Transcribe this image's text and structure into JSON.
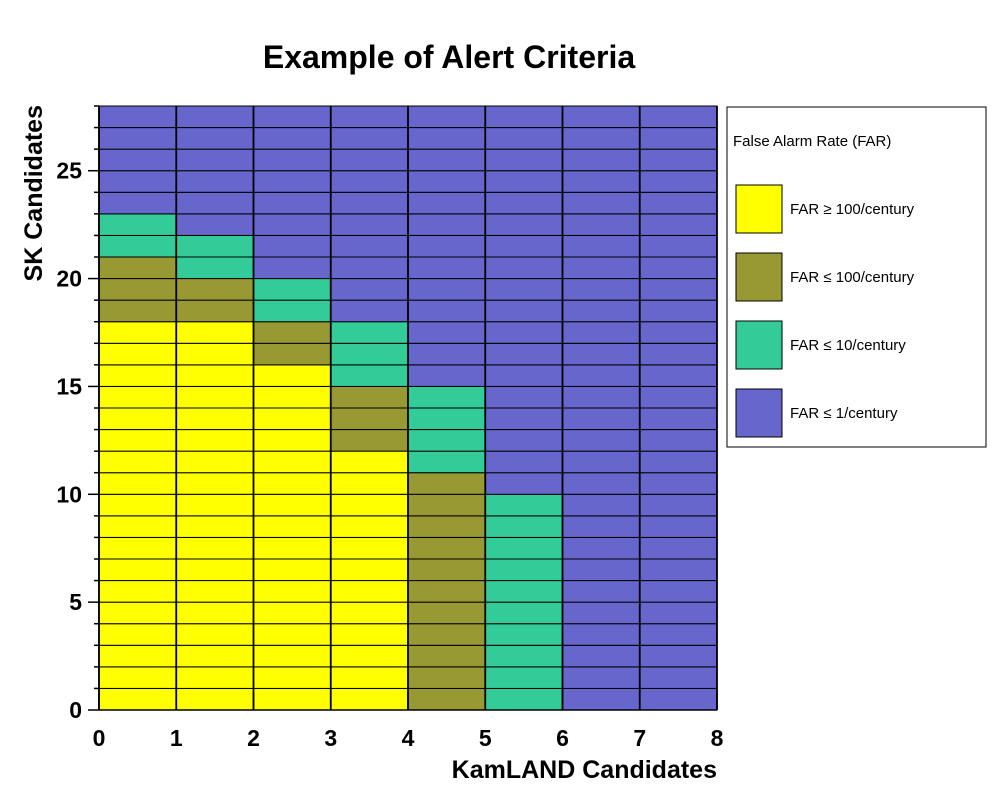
{
  "chart_data": {
    "type": "heatmap",
    "title": "Example of Alert Criteria",
    "xlabel": "KamLAND Candidates",
    "ylabel": "SK Candidates",
    "xlim": [
      0,
      8
    ],
    "ylim": [
      0,
      28
    ],
    "x_ticks": [
      "0",
      "1",
      "2",
      "3",
      "4",
      "5",
      "6",
      "7",
      "8"
    ],
    "y_ticks": [
      "0",
      "5",
      "10",
      "15",
      "20",
      "25"
    ],
    "x_tick_values": [
      0,
      1,
      2,
      3,
      4,
      5,
      6,
      7,
      8
    ],
    "y_tick_values": [
      0,
      5,
      10,
      15,
      20,
      25
    ],
    "cell_width": 1,
    "cell_height": 1,
    "legend": {
      "title": "False Alarm Rate (FAR)",
      "position": "right",
      "entries": [
        {
          "key": "L100plus",
          "label": "FAR ≥ 100/century",
          "color": "#ffff00"
        },
        {
          "key": "L100",
          "label": "FAR ≤ 100/century",
          "color": "#999933"
        },
        {
          "key": "L10",
          "label": "FAR ≤ 10/century",
          "color": "#33cc99"
        },
        {
          "key": "L1",
          "label": "FAR ≤ 1/century",
          "color": "#6666cc"
        }
      ]
    },
    "columns": [
      {
        "kamland": 0,
        "regions": [
          {
            "level": "L100plus",
            "sk_from": 0,
            "sk_to": 18
          },
          {
            "level": "L100",
            "sk_from": 18,
            "sk_to": 21
          },
          {
            "level": "L10",
            "sk_from": 21,
            "sk_to": 23
          },
          {
            "level": "L1",
            "sk_from": 23,
            "sk_to": 28
          }
        ]
      },
      {
        "kamland": 1,
        "regions": [
          {
            "level": "L100plus",
            "sk_from": 0,
            "sk_to": 18
          },
          {
            "level": "L100",
            "sk_from": 18,
            "sk_to": 20
          },
          {
            "level": "L10",
            "sk_from": 20,
            "sk_to": 22
          },
          {
            "level": "L1",
            "sk_from": 22,
            "sk_to": 28
          }
        ]
      },
      {
        "kamland": 2,
        "regions": [
          {
            "level": "L100plus",
            "sk_from": 0,
            "sk_to": 16
          },
          {
            "level": "L100",
            "sk_from": 16,
            "sk_to": 18
          },
          {
            "level": "L10",
            "sk_from": 18,
            "sk_to": 20
          },
          {
            "level": "L1",
            "sk_from": 20,
            "sk_to": 28
          }
        ]
      },
      {
        "kamland": 3,
        "regions": [
          {
            "level": "L100plus",
            "sk_from": 0,
            "sk_to": 12
          },
          {
            "level": "L100",
            "sk_from": 12,
            "sk_to": 15
          },
          {
            "level": "L10",
            "sk_from": 15,
            "sk_to": 18
          },
          {
            "level": "L1",
            "sk_from": 18,
            "sk_to": 28
          }
        ]
      },
      {
        "kamland": 4,
        "regions": [
          {
            "level": "L100",
            "sk_from": 0,
            "sk_to": 11
          },
          {
            "level": "L10",
            "sk_from": 11,
            "sk_to": 15
          },
          {
            "level": "L1",
            "sk_from": 15,
            "sk_to": 28
          }
        ]
      },
      {
        "kamland": 5,
        "regions": [
          {
            "level": "L10",
            "sk_from": 0,
            "sk_to": 10
          },
          {
            "level": "L1",
            "sk_from": 10,
            "sk_to": 28
          }
        ]
      },
      {
        "kamland": 6,
        "regions": [
          {
            "level": "L1",
            "sk_from": 0,
            "sk_to": 28
          }
        ]
      },
      {
        "kamland": 7,
        "regions": [
          {
            "level": "L1",
            "sk_from": 0,
            "sk_to": 28
          }
        ]
      }
    ],
    "grid": true
  }
}
